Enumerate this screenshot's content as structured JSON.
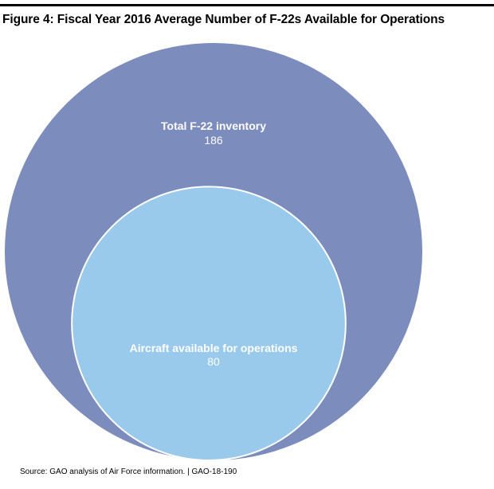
{
  "figure": {
    "title": "Figure 4: Fiscal Year 2016 Average Number of F-22s Available for Operations",
    "source": "Source: GAO analysis of Air Force information.  |  GAO-18-190"
  },
  "chart_data": {
    "type": "nested-bubble",
    "title": "Figure 4: Fiscal Year 2016 Average Number of F-22s Available for Operations",
    "items": [
      {
        "label": "Total F-22 inventory",
        "value": 186,
        "color": "#7b8cbd"
      },
      {
        "label": "Aircraft available for operations",
        "value": 80,
        "color": "#99caeb"
      }
    ]
  },
  "colors": {
    "outer_fill": "#7b8cbd",
    "inner_fill": "#99caeb",
    "inner_stroke": "#ffffff",
    "text": "#ffffff"
  }
}
